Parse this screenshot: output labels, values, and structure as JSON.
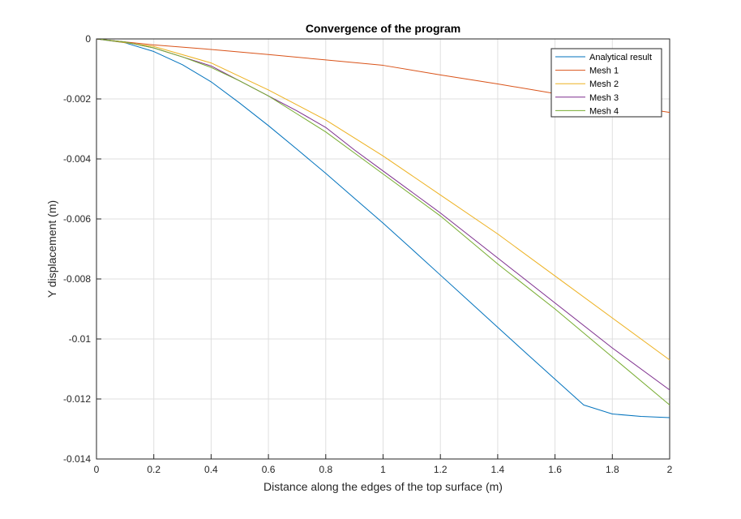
{
  "chart_data": {
    "type": "line",
    "title": "Convergence of the program",
    "xlabel": "Distance along the edges of the top surface (m)",
    "ylabel": "Y displacement (m)",
    "xlim": [
      0,
      2
    ],
    "ylim": [
      -0.014,
      0
    ],
    "grid": true,
    "legend_position": "top-right",
    "x_ticks": [
      {
        "value": 0,
        "label": "0"
      },
      {
        "value": 0.2,
        "label": "0.2"
      },
      {
        "value": 0.4,
        "label": "0.4"
      },
      {
        "value": 0.6,
        "label": "0.6"
      },
      {
        "value": 0.8,
        "label": "0.8"
      },
      {
        "value": 1,
        "label": "1"
      },
      {
        "value": 1.2,
        "label": "1.2"
      },
      {
        "value": 1.4,
        "label": "1.4"
      },
      {
        "value": 1.6,
        "label": "1.6"
      },
      {
        "value": 1.8,
        "label": "1.8"
      },
      {
        "value": 2,
        "label": "2"
      }
    ],
    "y_ticks": [
      {
        "value": 0,
        "label": "0"
      },
      {
        "value": -0.002,
        "label": "-0.002"
      },
      {
        "value": -0.004,
        "label": "-0.004"
      },
      {
        "value": -0.006,
        "label": "-0.006"
      },
      {
        "value": -0.008,
        "label": "-0.008"
      },
      {
        "value": -0.01,
        "label": "-0.01"
      },
      {
        "value": -0.012,
        "label": "-0.012"
      },
      {
        "value": -0.014,
        "label": "-0.014"
      }
    ],
    "series": [
      {
        "name": "Analytical result",
        "color": "#0072BD",
        "x": [
          0,
          0.1,
          0.2,
          0.3,
          0.4,
          0.5,
          0.6,
          0.7,
          0.8,
          0.9,
          1.0,
          1.1,
          1.2,
          1.3,
          1.4,
          1.5,
          1.6,
          1.7,
          1.8,
          1.9,
          2.0
        ],
        "y": [
          0,
          -0.00013,
          -0.00042,
          -0.00086,
          -0.00143,
          -0.00214,
          -0.00289,
          -0.00368,
          -0.00448,
          -0.00531,
          -0.00614,
          -0.007,
          -0.00787,
          -0.00874,
          -0.00961,
          -0.01048,
          -0.01134,
          -0.0122,
          -0.0125,
          -0.01258,
          -0.01262
        ]
      },
      {
        "name": "Mesh 1",
        "color": "#D95319",
        "x": [
          0,
          0.2,
          0.4,
          0.6,
          0.8,
          1.0,
          1.2,
          1.4,
          1.6,
          1.8,
          2.0
        ],
        "y": [
          0,
          -0.0002,
          -0.00035,
          -0.00052,
          -0.0007,
          -0.00088,
          -0.0012,
          -0.0015,
          -0.00182,
          -0.00215,
          -0.00245
        ]
      },
      {
        "name": "Mesh 2",
        "color": "#EDB120",
        "x": [
          0,
          0.2,
          0.4,
          0.6,
          0.8,
          1.0,
          1.2,
          1.4,
          1.6,
          1.8,
          2.0
        ],
        "y": [
          0,
          -0.00025,
          -0.0008,
          -0.0017,
          -0.0027,
          -0.0039,
          -0.0052,
          -0.0065,
          -0.0079,
          -0.0093,
          -0.0107
        ]
      },
      {
        "name": "Mesh 3",
        "color": "#7E2F8E",
        "x": [
          0,
          0.1,
          0.2,
          0.3,
          0.4,
          0.5,
          0.6,
          0.7,
          0.8,
          0.9,
          1.0,
          1.2,
          1.4,
          1.6,
          1.8,
          2.0
        ],
        "y": [
          0,
          -0.0001,
          -0.0003,
          -0.0006,
          -0.0009,
          -0.0014,
          -0.0019,
          -0.0024,
          -0.00295,
          -0.0037,
          -0.0044,
          -0.0058,
          -0.0073,
          -0.0088,
          -0.0103,
          -0.0117
        ]
      },
      {
        "name": "Mesh 4",
        "color": "#77AC30",
        "x": [
          0,
          0.1,
          0.2,
          0.3,
          0.4,
          0.5,
          0.6,
          0.7,
          0.8,
          0.9,
          1.0,
          1.2,
          1.4,
          1.6,
          1.8,
          2.0
        ],
        "y": [
          0,
          -0.0001,
          -0.0003,
          -0.0006,
          -0.00095,
          -0.0014,
          -0.0019,
          -0.0025,
          -0.0031,
          -0.0038,
          -0.0045,
          -0.0059,
          -0.0075,
          -0.009,
          -0.0106,
          -0.0122
        ]
      }
    ]
  }
}
